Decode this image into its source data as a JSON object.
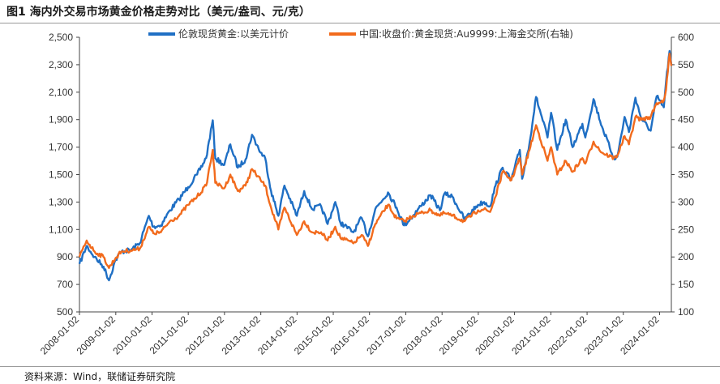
{
  "figure": {
    "title": "图1  海内外交易市场黄金价格走势对比（美元/盎司、元/克）",
    "source": "资料来源：Wind，联储证券研究院"
  },
  "chart_data": {
    "type": "line",
    "title": "图1  海内外交易市场黄金价格走势对比（美元/盎司、元/克）",
    "xlabel": "",
    "ylabel": "",
    "x_ticks": [
      "2008-01-02",
      "2009-01-02",
      "2010-01-02",
      "2011-01-02",
      "2012-01-02",
      "2013-01-02",
      "2014-01-02",
      "2015-01-02",
      "2016-01-02",
      "2017-01-02",
      "2018-01-02",
      "2019-01-02",
      "2020-01-02",
      "2021-01-02",
      "2022-01-02",
      "2023-01-02",
      "2024-01-02"
    ],
    "x_range": [
      "2008-01-02",
      "2024-04-30"
    ],
    "y_left": {
      "ylim": [
        500,
        2500
      ],
      "ticks": [
        "500",
        "700",
        "900",
        "1,100",
        "1,300",
        "1,500",
        "1,700",
        "1,900",
        "2,100",
        "2,300",
        "2,500"
      ]
    },
    "y_right": {
      "ylim": [
        100,
        600
      ],
      "ticks": [
        "100",
        "150",
        "200",
        "250",
        "300",
        "350",
        "400",
        "450",
        "500",
        "550",
        "600"
      ]
    },
    "legend_position": "top-center",
    "grid": false,
    "series": [
      {
        "name": "伦敦现货黄金:以美元计价",
        "axis": "left",
        "color": "#1f6fc4",
        "points": [
          [
            "2008-01-02",
            850
          ],
          [
            "2008-03-15",
            980
          ],
          [
            "2008-06-01",
            900
          ],
          [
            "2008-09-01",
            830
          ],
          [
            "2008-10-25",
            730
          ],
          [
            "2008-12-31",
            880
          ],
          [
            "2009-03-01",
            940
          ],
          [
            "2009-06-01",
            950
          ],
          [
            "2009-09-01",
            1000
          ],
          [
            "2009-12-01",
            1200
          ],
          [
            "2010-01-15",
            1120
          ],
          [
            "2010-04-01",
            1130
          ],
          [
            "2010-07-01",
            1240
          ],
          [
            "2010-10-01",
            1320
          ],
          [
            "2011-01-01",
            1410
          ],
          [
            "2011-04-01",
            1500
          ],
          [
            "2011-07-01",
            1620
          ],
          [
            "2011-09-06",
            1895
          ],
          [
            "2011-10-01",
            1620
          ],
          [
            "2011-12-31",
            1570
          ],
          [
            "2012-03-01",
            1720
          ],
          [
            "2012-05-15",
            1550
          ],
          [
            "2012-08-01",
            1610
          ],
          [
            "2012-10-05",
            1790
          ],
          [
            "2012-12-31",
            1660
          ],
          [
            "2013-02-15",
            1620
          ],
          [
            "2013-04-15",
            1380
          ],
          [
            "2013-06-28",
            1200
          ],
          [
            "2013-08-28",
            1420
          ],
          [
            "2013-12-31",
            1200
          ],
          [
            "2014-03-15",
            1380
          ],
          [
            "2014-06-01",
            1250
          ],
          [
            "2014-09-01",
            1270
          ],
          [
            "2014-11-06",
            1140
          ],
          [
            "2015-01-22",
            1300
          ],
          [
            "2015-03-15",
            1150
          ],
          [
            "2015-07-24",
            1080
          ],
          [
            "2015-10-15",
            1185
          ],
          [
            "2015-12-17",
            1050
          ],
          [
            "2016-03-01",
            1250
          ],
          [
            "2016-07-06",
            1370
          ],
          [
            "2016-10-01",
            1260
          ],
          [
            "2016-12-15",
            1130
          ],
          [
            "2017-03-15",
            1200
          ],
          [
            "2017-06-01",
            1270
          ],
          [
            "2017-09-08",
            1350
          ],
          [
            "2017-12-12",
            1240
          ],
          [
            "2018-01-25",
            1360
          ],
          [
            "2018-04-15",
            1340
          ],
          [
            "2018-08-16",
            1175
          ],
          [
            "2018-12-31",
            1280
          ],
          [
            "2019-03-01",
            1300
          ],
          [
            "2019-05-01",
            1270
          ],
          [
            "2019-06-25",
            1420
          ],
          [
            "2019-09-04",
            1550
          ],
          [
            "2019-12-01",
            1460
          ],
          [
            "2020-02-24",
            1680
          ],
          [
            "2020-03-19",
            1470
          ],
          [
            "2020-06-01",
            1730
          ],
          [
            "2020-08-06",
            2065
          ],
          [
            "2020-11-30",
            1770
          ],
          [
            "2021-01-05",
            1950
          ],
          [
            "2021-03-08",
            1680
          ],
          [
            "2021-06-01",
            1900
          ],
          [
            "2021-08-09",
            1700
          ],
          [
            "2021-11-16",
            1870
          ],
          [
            "2021-12-15",
            1770
          ],
          [
            "2022-03-08",
            2050
          ],
          [
            "2022-06-01",
            1850
          ],
          [
            "2022-09-28",
            1620
          ],
          [
            "2022-11-03",
            1630
          ],
          [
            "2023-01-15",
            1920
          ],
          [
            "2023-02-28",
            1810
          ],
          [
            "2023-05-04",
            2060
          ],
          [
            "2023-07-01",
            1910
          ],
          [
            "2023-10-05",
            1820
          ],
          [
            "2023-12-04",
            2070
          ],
          [
            "2024-02-14",
            1990
          ],
          [
            "2024-03-08",
            2180
          ],
          [
            "2024-04-12",
            2400
          ],
          [
            "2024-04-30",
            2300
          ]
        ]
      },
      {
        "name": "中国:收盘价:黄金现货:Au9999:上海金交所(右轴)",
        "axis": "right",
        "color": "#f26b1d",
        "points": [
          [
            "2008-01-02",
            200
          ],
          [
            "2008-03-15",
            230
          ],
          [
            "2008-06-01",
            210
          ],
          [
            "2008-09-01",
            200
          ],
          [
            "2008-10-25",
            180
          ],
          [
            "2008-12-31",
            198
          ],
          [
            "2009-03-01",
            210
          ],
          [
            "2009-06-01",
            212
          ],
          [
            "2009-09-01",
            215
          ],
          [
            "2009-12-01",
            255
          ],
          [
            "2010-01-15",
            243
          ],
          [
            "2010-04-01",
            245
          ],
          [
            "2010-07-01",
            265
          ],
          [
            "2010-10-01",
            275
          ],
          [
            "2011-01-01",
            295
          ],
          [
            "2011-04-01",
            310
          ],
          [
            "2011-07-01",
            330
          ],
          [
            "2011-09-06",
            395
          ],
          [
            "2011-10-01",
            335
          ],
          [
            "2011-12-31",
            325
          ],
          [
            "2012-03-01",
            350
          ],
          [
            "2012-05-15",
            320
          ],
          [
            "2012-08-01",
            330
          ],
          [
            "2012-10-05",
            360
          ],
          [
            "2012-12-31",
            340
          ],
          [
            "2013-02-15",
            330
          ],
          [
            "2013-04-15",
            290
          ],
          [
            "2013-06-28",
            250
          ],
          [
            "2013-08-28",
            290
          ],
          [
            "2013-12-31",
            240
          ],
          [
            "2014-03-15",
            265
          ],
          [
            "2014-06-01",
            245
          ],
          [
            "2014-09-01",
            245
          ],
          [
            "2014-11-06",
            230
          ],
          [
            "2015-01-22",
            255
          ],
          [
            "2015-03-15",
            235
          ],
          [
            "2015-07-24",
            225
          ],
          [
            "2015-10-15",
            240
          ],
          [
            "2015-12-17",
            220
          ],
          [
            "2016-03-01",
            260
          ],
          [
            "2016-07-06",
            295
          ],
          [
            "2016-10-01",
            270
          ],
          [
            "2016-12-15",
            265
          ],
          [
            "2017-03-15",
            275
          ],
          [
            "2017-06-01",
            280
          ],
          [
            "2017-09-08",
            285
          ],
          [
            "2017-12-12",
            275
          ],
          [
            "2018-01-25",
            280
          ],
          [
            "2018-04-15",
            275
          ],
          [
            "2018-08-16",
            265
          ],
          [
            "2018-12-31",
            285
          ],
          [
            "2019-03-01",
            287
          ],
          [
            "2019-05-01",
            282
          ],
          [
            "2019-06-25",
            310
          ],
          [
            "2019-09-04",
            355
          ],
          [
            "2019-12-01",
            340
          ],
          [
            "2020-02-24",
            380
          ],
          [
            "2020-03-19",
            350
          ],
          [
            "2020-06-01",
            395
          ],
          [
            "2020-08-06",
            440
          ],
          [
            "2020-11-30",
            375
          ],
          [
            "2021-01-05",
            400
          ],
          [
            "2021-03-08",
            350
          ],
          [
            "2021-06-01",
            375
          ],
          [
            "2021-08-09",
            355
          ],
          [
            "2021-11-16",
            380
          ],
          [
            "2021-12-15",
            370
          ],
          [
            "2022-03-08",
            410
          ],
          [
            "2022-06-01",
            390
          ],
          [
            "2022-09-28",
            380
          ],
          [
            "2022-11-03",
            385
          ],
          [
            "2023-01-15",
            420
          ],
          [
            "2023-02-28",
            405
          ],
          [
            "2023-05-04",
            455
          ],
          [
            "2023-07-01",
            450
          ],
          [
            "2023-10-05",
            455
          ],
          [
            "2023-12-04",
            480
          ],
          [
            "2024-02-14",
            485
          ],
          [
            "2024-03-08",
            505
          ],
          [
            "2024-04-12",
            570
          ],
          [
            "2024-04-30",
            548
          ]
        ]
      }
    ]
  }
}
